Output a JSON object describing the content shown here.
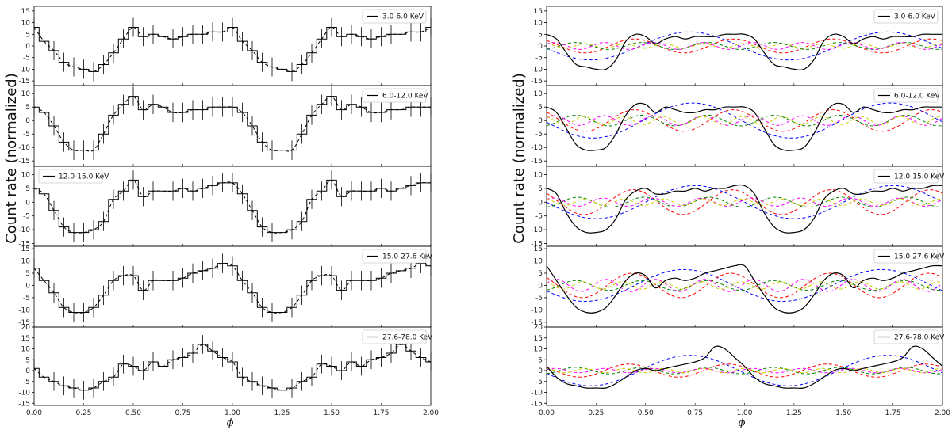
{
  "chart_data": {
    "type": "line",
    "ylabel": "Count rate (normalized)",
    "xlabel": "ϕ",
    "xlim": [
      0,
      2
    ],
    "x_ticks": [
      "0.00",
      "0.25",
      "0.50",
      "0.75",
      "1.00",
      "1.25",
      "1.50",
      "1.75",
      "2.00"
    ],
    "legend_placement": "top-right",
    "colors": {
      "data": "#000000",
      "harmonic_1": "#0000ff",
      "harmonic_2": "#ff0000",
      "harmonic_3": "#008000",
      "harmonic_4": "#ff00ff",
      "harmonic_5": "#cccc00"
    },
    "left_panels": [
      {
        "label": "3.0-6.0 KeV",
        "ylim": [
          -17,
          17
        ],
        "yticks": [
          "15",
          "10",
          "5",
          "0",
          "-5",
          "-10",
          "-15"
        ],
        "phase": [
          0.0,
          0.05,
          0.1,
          0.15,
          0.2,
          0.25,
          0.3,
          0.35,
          0.4,
          0.45,
          0.5,
          0.55,
          0.6,
          0.65,
          0.7,
          0.75,
          0.8,
          0.85,
          0.9,
          0.95,
          1.0
        ],
        "rate": [
          8,
          2,
          -2,
          -7,
          -9,
          -10,
          -11,
          -8,
          -3,
          3,
          8,
          4,
          5,
          4,
          3,
          4,
          5,
          5,
          6,
          6,
          8
        ]
      },
      {
        "label": "6.0-12.0 KeV",
        "ylim": [
          -17,
          13
        ],
        "yticks": [
          "10",
          "5",
          "0",
          "-5",
          "-10",
          "-15"
        ],
        "phase": [
          0.0,
          0.05,
          0.1,
          0.15,
          0.2,
          0.25,
          0.3,
          0.35,
          0.4,
          0.45,
          0.5,
          0.55,
          0.6,
          0.65,
          0.7,
          0.75,
          0.8,
          0.85,
          0.9,
          0.95,
          1.0
        ],
        "rate": [
          5,
          3,
          -2,
          -8,
          -11,
          -11,
          -11,
          -5,
          2,
          6,
          9,
          4,
          6,
          5,
          3,
          3,
          4,
          4,
          5,
          5,
          5
        ]
      },
      {
        "label": "12.0-15.0 KeV",
        "ylim": [
          -16,
          13
        ],
        "yticks": [
          "10",
          "5",
          "0",
          "-5",
          "-10",
          "-15"
        ],
        "phase": [
          0.0,
          0.05,
          0.1,
          0.15,
          0.2,
          0.25,
          0.3,
          0.35,
          0.4,
          0.45,
          0.5,
          0.55,
          0.6,
          0.65,
          0.7,
          0.75,
          0.8,
          0.85,
          0.9,
          0.95,
          1.0
        ],
        "rate": [
          5,
          3,
          -3,
          -9,
          -11,
          -11,
          -10,
          -7,
          1,
          4,
          8,
          2,
          4,
          4,
          4,
          5,
          4,
          5,
          6,
          7,
          7
        ]
      },
      {
        "label": "15.0-27.6 KeV",
        "ylim": [
          -17,
          16
        ],
        "yticks": [
          "15",
          "10",
          "5",
          "0",
          "-5",
          "-10",
          "-15"
        ],
        "phase": [
          0.0,
          0.05,
          0.1,
          0.15,
          0.2,
          0.25,
          0.3,
          0.35,
          0.4,
          0.45,
          0.5,
          0.55,
          0.6,
          0.65,
          0.7,
          0.75,
          0.8,
          0.85,
          0.9,
          0.95,
          1.0
        ],
        "rate": [
          7,
          2,
          -3,
          -9,
          -11,
          -11,
          -9,
          -4,
          2,
          4,
          4,
          -2,
          2,
          2,
          2,
          3,
          5,
          6,
          7,
          9,
          8
        ]
      },
      {
        "label": "27.6-78.0 KeV",
        "ylim": [
          -16,
          20
        ],
        "yticks": [
          "20",
          "15",
          "10",
          "5",
          "0",
          "-5",
          "-10",
          "-15"
        ],
        "phase": [
          0.0,
          0.05,
          0.1,
          0.15,
          0.2,
          0.25,
          0.3,
          0.35,
          0.4,
          0.45,
          0.5,
          0.55,
          0.6,
          0.65,
          0.7,
          0.75,
          0.8,
          0.85,
          0.9,
          0.95,
          1.0
        ],
        "rate": [
          1,
          -3,
          -5,
          -7,
          -8,
          -9,
          -8,
          -5,
          -3,
          3,
          2,
          0,
          4,
          2,
          5,
          6,
          8,
          12,
          9,
          6,
          4
        ]
      }
    ],
    "right_panels": [
      {
        "label": "3.0-6.0 KeV",
        "ylim": [
          -17,
          17
        ],
        "yticks": [
          "15",
          "10",
          "5",
          "0",
          "-5",
          "-10",
          "-15"
        ],
        "total": {
          "phase": [
            0.0,
            0.05,
            0.1,
            0.15,
            0.2,
            0.25,
            0.3,
            0.35,
            0.4,
            0.45,
            0.5,
            0.55,
            0.6,
            0.65,
            0.7,
            0.75,
            0.8,
            0.85,
            0.9,
            0.95,
            1.0
          ],
          "rate": [
            5,
            3,
            -3,
            -8,
            -9,
            -10,
            -10,
            -6,
            2,
            5,
            4,
            1,
            3,
            4,
            3,
            4,
            4,
            4,
            5,
            5,
            5
          ]
        },
        "harmonics": [
          {
            "amp": 6.0,
            "phase_deg": 100
          },
          {
            "amp": 3.0,
            "phase_deg": 40
          },
          {
            "amp": 1.5,
            "phase_deg": 200
          },
          {
            "amp": 1.5,
            "phase_deg": 300
          },
          {
            "amp": 1.0,
            "phase_deg": 10
          }
        ]
      },
      {
        "label": "6.0-12.0 KeV",
        "ylim": [
          -17,
          13
        ],
        "yticks": [
          "10",
          "5",
          "0",
          "-5",
          "-10",
          "-15"
        ],
        "total": {
          "phase": [
            0.0,
            0.05,
            0.1,
            0.15,
            0.2,
            0.25,
            0.3,
            0.35,
            0.4,
            0.45,
            0.5,
            0.55,
            0.6,
            0.65,
            0.7,
            0.75,
            0.8,
            0.85,
            0.9,
            0.95,
            1.0
          ],
          "rate": [
            5,
            3,
            -3,
            -9,
            -11,
            -11,
            -10,
            -5,
            2,
            6,
            6,
            3,
            5,
            4,
            3,
            3,
            4,
            4,
            5,
            5,
            5
          ]
        },
        "harmonics": [
          {
            "amp": 6.5,
            "phase_deg": 95
          },
          {
            "amp": 4.0,
            "phase_deg": 40
          },
          {
            "amp": 2.0,
            "phase_deg": 200
          },
          {
            "amp": 1.8,
            "phase_deg": 300
          },
          {
            "amp": 1.5,
            "phase_deg": 20
          }
        ]
      },
      {
        "label": "12.0-15.0 KeV",
        "ylim": [
          -16,
          13
        ],
        "yticks": [
          "10",
          "5",
          "0",
          "-5",
          "-10",
          "-15"
        ],
        "total": {
          "phase": [
            0.0,
            0.05,
            0.1,
            0.15,
            0.2,
            0.25,
            0.3,
            0.35,
            0.4,
            0.45,
            0.5,
            0.55,
            0.6,
            0.65,
            0.7,
            0.75,
            0.8,
            0.85,
            0.9,
            0.95,
            1.0
          ],
          "rate": [
            5,
            3,
            -4,
            -9,
            -11,
            -11,
            -10,
            -6,
            1,
            4,
            5,
            3,
            3,
            4,
            4,
            5,
            4,
            5,
            5,
            6,
            6
          ]
        },
        "harmonics": [
          {
            "amp": 6.0,
            "phase_deg": 90
          },
          {
            "amp": 4.5,
            "phase_deg": 45
          },
          {
            "amp": 1.8,
            "phase_deg": 190
          },
          {
            "amp": 1.5,
            "phase_deg": 310
          },
          {
            "amp": 1.2,
            "phase_deg": 15
          }
        ]
      },
      {
        "label": "15.0-27.6 KeV",
        "ylim": [
          -17,
          16
        ],
        "yticks": [
          "15",
          "10",
          "5",
          "0",
          "-5",
          "-10",
          "-15"
        ],
        "total": {
          "phase": [
            0.0,
            0.05,
            0.1,
            0.15,
            0.2,
            0.25,
            0.3,
            0.35,
            0.4,
            0.45,
            0.5,
            0.55,
            0.6,
            0.65,
            0.7,
            0.75,
            0.8,
            0.85,
            0.9,
            0.95,
            1.0
          ],
          "rate": [
            8,
            2,
            -4,
            -9,
            -11,
            -11,
            -9,
            -4,
            2,
            5,
            4,
            -1,
            2,
            3,
            2,
            3,
            5,
            6,
            7,
            8,
            8
          ]
        },
        "harmonics": [
          {
            "amp": 6.5,
            "phase_deg": 110
          },
          {
            "amp": 5.0,
            "phase_deg": 50
          },
          {
            "amp": 2.0,
            "phase_deg": 200
          },
          {
            "amp": 2.5,
            "phase_deg": 290
          },
          {
            "amp": 1.5,
            "phase_deg": 30
          }
        ]
      },
      {
        "label": "27.6-78.0 KeV",
        "ylim": [
          -16,
          20
        ],
        "yticks": [
          "20",
          "15",
          "10",
          "5",
          "0",
          "-5",
          "-10",
          "-15"
        ],
        "total": {
          "phase": [
            0.0,
            0.05,
            0.1,
            0.15,
            0.2,
            0.25,
            0.3,
            0.35,
            0.4,
            0.45,
            0.5,
            0.55,
            0.6,
            0.65,
            0.7,
            0.75,
            0.8,
            0.85,
            0.9,
            0.95,
            1.0
          ],
          "rate": [
            2,
            -3,
            -6,
            -7,
            -8,
            -8,
            -8,
            -6,
            -3,
            0,
            1,
            0,
            1,
            2,
            3,
            4,
            6,
            11,
            10,
            6,
            2
          ]
        },
        "harmonics": [
          {
            "amp": 7.0,
            "phase_deg": 100
          },
          {
            "amp": 3.0,
            "phase_deg": 60
          },
          {
            "amp": 1.5,
            "phase_deg": 200
          },
          {
            "amp": 1.0,
            "phase_deg": 300
          },
          {
            "amp": 1.0,
            "phase_deg": 10
          }
        ]
      }
    ]
  }
}
